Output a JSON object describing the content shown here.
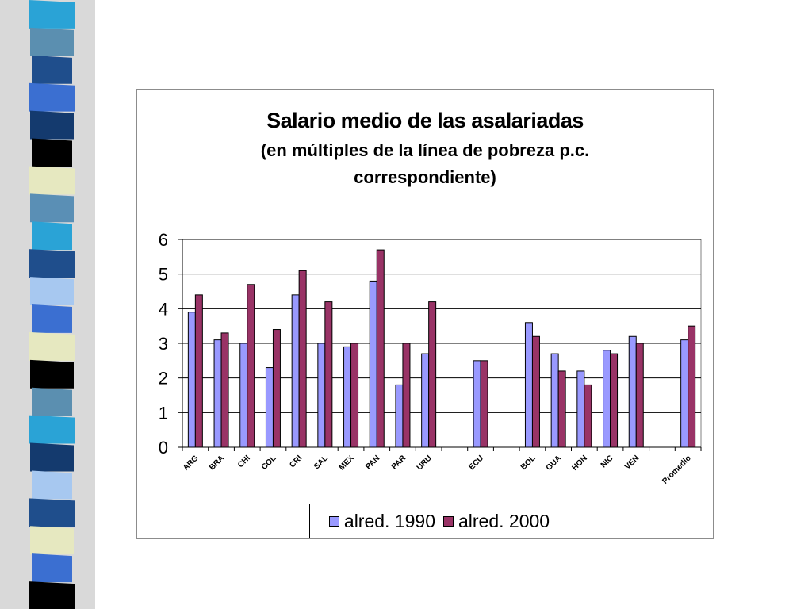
{
  "chart_data": {
    "type": "bar",
    "title": "Salario medio de las asalariadas",
    "subtitle_line1": "(en múltiples de la línea de pobreza p.c.",
    "subtitle_line2": "correspondiente)",
    "categories": [
      "ARG",
      "BRA",
      "CHI",
      "COL",
      "CRI",
      "SAL",
      "MEX",
      "PAN",
      "PAR",
      "URU",
      "",
      "ECU",
      "",
      "BOL",
      "GUA",
      "HON",
      "NIC",
      "VEN",
      "",
      "Promedio"
    ],
    "series": [
      {
        "name": "alred. 1990",
        "color": "#9999ff",
        "values": [
          3.9,
          3.1,
          3.0,
          2.3,
          4.4,
          3.0,
          2.9,
          4.8,
          1.8,
          2.7,
          null,
          2.5,
          null,
          3.6,
          2.7,
          2.2,
          2.8,
          3.2,
          null,
          3.1
        ]
      },
      {
        "name": "alred. 2000",
        "color": "#993366",
        "values": [
          4.4,
          3.3,
          4.7,
          3.4,
          5.1,
          4.2,
          3.0,
          5.7,
          3.0,
          4.2,
          null,
          2.5,
          null,
          3.2,
          2.2,
          1.8,
          2.7,
          3.0,
          null,
          3.5
        ]
      }
    ],
    "ylim": [
      0,
      6
    ],
    "yticks": [
      "0",
      "1",
      "2",
      "3",
      "4",
      "5",
      "6"
    ],
    "grid": true,
    "legend_position": "bottom"
  },
  "slide": {
    "strip_colors": [
      "#2aa3d6",
      "#5b8fb0",
      "#1f4e8c",
      "#3b6fd1",
      "#143a6e",
      "#000000",
      "#e6e8c0",
      "#5a8fb5",
      "#2aa3d6",
      "#1f4e8c",
      "#a7c8f0",
      "#3b6fd1",
      "#e6e8c0",
      "#000000",
      "#5b8fb0",
      "#2aa3d6",
      "#143a6e",
      "#a7c8f0",
      "#1f4e8c",
      "#e6e8c0",
      "#3b6fd1",
      "#000000"
    ]
  }
}
